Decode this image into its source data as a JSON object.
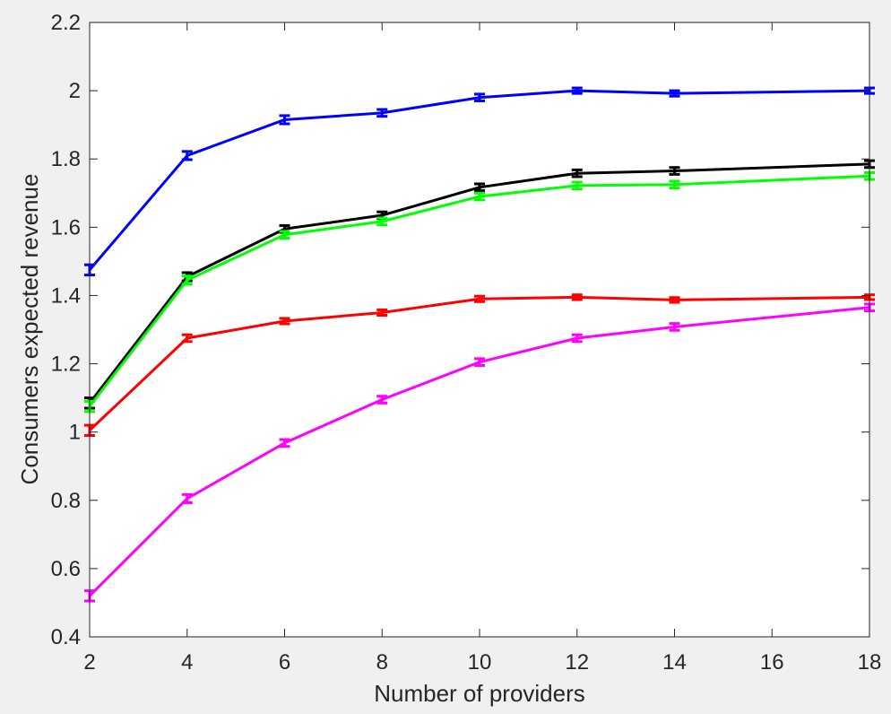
{
  "chart_data": {
    "type": "line",
    "xlabel": "Number of providers",
    "ylabel": "Consumers expected revenue",
    "xlim": [
      2,
      18
    ],
    "ylim": [
      0.4,
      2.2
    ],
    "xticks": [
      2,
      4,
      6,
      8,
      10,
      12,
      14,
      16,
      18
    ],
    "yticks": [
      0.4,
      0.6,
      0.8,
      1,
      1.2,
      1.4,
      1.6,
      1.8,
      2,
      2.2
    ],
    "xtick_labels": [
      "2",
      "4",
      "6",
      "8",
      "10",
      "12",
      "14",
      "16",
      "18"
    ],
    "ytick_labels": [
      "0.4",
      "0.6",
      "0.8",
      "1",
      "1.2",
      "1.4",
      "1.6",
      "1.8",
      "2",
      "2.2"
    ],
    "grid": false,
    "legend": "none",
    "error_bars": true,
    "series": [
      {
        "color": "#0000ff",
        "x": [
          2,
          4,
          6,
          8,
          10,
          12,
          14,
          18
        ],
        "values": [
          1.475,
          1.81,
          1.915,
          1.935,
          1.98,
          2.0,
          1.992,
          2.0
        ],
        "errors": [
          0.015,
          0.012,
          0.012,
          0.01,
          0.01,
          0.008,
          0.008,
          0.008
        ]
      },
      {
        "color": "#000000",
        "x": [
          2,
          4,
          6,
          8,
          10,
          12,
          14,
          18
        ],
        "values": [
          1.085,
          1.455,
          1.595,
          1.635,
          1.717,
          1.758,
          1.765,
          1.785
        ],
        "errors": [
          0.015,
          0.012,
          0.01,
          0.01,
          0.01,
          0.01,
          0.01,
          0.01
        ]
      },
      {
        "color": "#00ff00",
        "x": [
          2,
          4,
          6,
          8,
          10,
          12,
          14,
          18
        ],
        "values": [
          1.075,
          1.445,
          1.578,
          1.617,
          1.69,
          1.722,
          1.725,
          1.75
        ],
        "errors": [
          0.015,
          0.012,
          0.01,
          0.01,
          0.01,
          0.01,
          0.01,
          0.01
        ]
      },
      {
        "color": "#ff0000",
        "x": [
          2,
          4,
          6,
          8,
          10,
          12,
          14,
          18
        ],
        "values": [
          1.005,
          1.275,
          1.325,
          1.35,
          1.39,
          1.395,
          1.387,
          1.395
        ],
        "errors": [
          0.015,
          0.01,
          0.008,
          0.008,
          0.008,
          0.007,
          0.007,
          0.007
        ]
      },
      {
        "color": "#ff00ff",
        "x": [
          2,
          4,
          6,
          8,
          10,
          12,
          14,
          18
        ],
        "values": [
          0.52,
          0.805,
          0.968,
          1.095,
          1.205,
          1.275,
          1.308,
          1.365
        ],
        "errors": [
          0.015,
          0.012,
          0.01,
          0.01,
          0.01,
          0.01,
          0.01,
          0.01
        ]
      }
    ]
  }
}
